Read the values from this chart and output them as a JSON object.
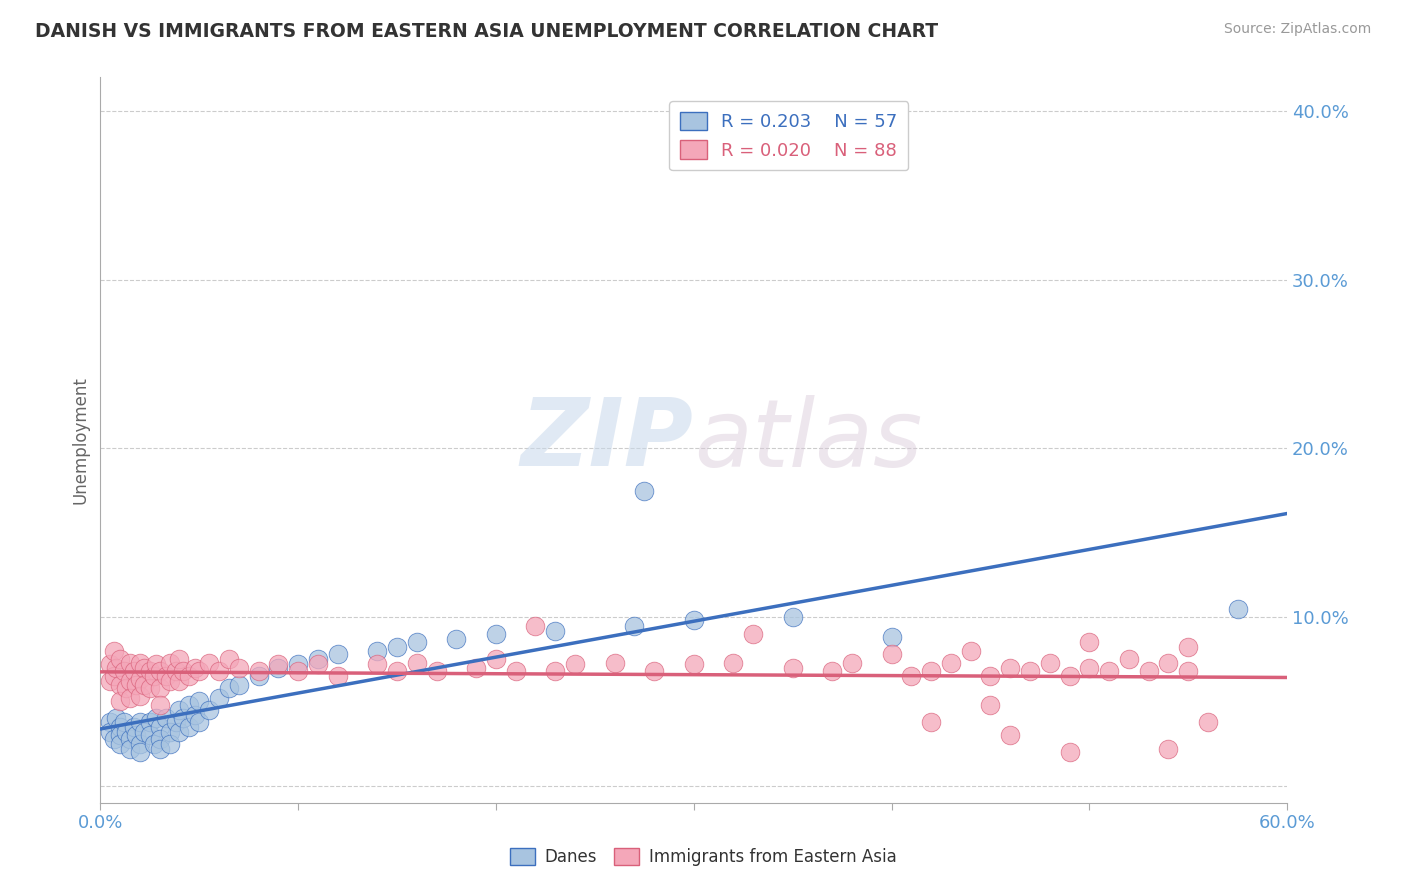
{
  "title": "DANISH VS IMMIGRANTS FROM EASTERN ASIA UNEMPLOYMENT CORRELATION CHART",
  "source": "Source: ZipAtlas.com",
  "ylabel": "Unemployment",
  "legend_blue_label": "Danes",
  "legend_pink_label": "Immigrants from Eastern Asia",
  "R_blue": 0.203,
  "N_blue": 57,
  "R_pink": 0.02,
  "N_pink": 88,
  "xlim": [
    0.0,
    0.6
  ],
  "ylim": [
    -0.01,
    0.42
  ],
  "yticks": [
    0.0,
    0.1,
    0.2,
    0.3,
    0.4
  ],
  "ytick_labels": [
    "",
    "10.0%",
    "20.0%",
    "30.0%",
    "40.0%"
  ],
  "watermark_zip": "ZIP",
  "watermark_atlas": "atlas",
  "blue_color": "#a8c4e0",
  "pink_color": "#f4a7b9",
  "blue_line_color": "#3c6fbe",
  "pink_line_color": "#d9607a",
  "background_color": "#ffffff",
  "grid_color": "#cccccc",
  "blue_scatter": [
    [
      0.005,
      0.038
    ],
    [
      0.005,
      0.032
    ],
    [
      0.007,
      0.028
    ],
    [
      0.008,
      0.04
    ],
    [
      0.01,
      0.035
    ],
    [
      0.01,
      0.03
    ],
    [
      0.01,
      0.025
    ],
    [
      0.012,
      0.038
    ],
    [
      0.013,
      0.032
    ],
    [
      0.015,
      0.028
    ],
    [
      0.015,
      0.022
    ],
    [
      0.017,
      0.035
    ],
    [
      0.018,
      0.03
    ],
    [
      0.02,
      0.038
    ],
    [
      0.02,
      0.025
    ],
    [
      0.02,
      0.02
    ],
    [
      0.022,
      0.032
    ],
    [
      0.025,
      0.038
    ],
    [
      0.025,
      0.03
    ],
    [
      0.027,
      0.025
    ],
    [
      0.028,
      0.04
    ],
    [
      0.03,
      0.035
    ],
    [
      0.03,
      0.028
    ],
    [
      0.03,
      0.022
    ],
    [
      0.033,
      0.04
    ],
    [
      0.035,
      0.032
    ],
    [
      0.035,
      0.025
    ],
    [
      0.038,
      0.038
    ],
    [
      0.04,
      0.045
    ],
    [
      0.04,
      0.032
    ],
    [
      0.042,
      0.04
    ],
    [
      0.045,
      0.048
    ],
    [
      0.045,
      0.035
    ],
    [
      0.048,
      0.042
    ],
    [
      0.05,
      0.05
    ],
    [
      0.05,
      0.038
    ],
    [
      0.055,
      0.045
    ],
    [
      0.06,
      0.052
    ],
    [
      0.065,
      0.058
    ],
    [
      0.07,
      0.06
    ],
    [
      0.08,
      0.065
    ],
    [
      0.09,
      0.07
    ],
    [
      0.1,
      0.072
    ],
    [
      0.11,
      0.075
    ],
    [
      0.12,
      0.078
    ],
    [
      0.14,
      0.08
    ],
    [
      0.15,
      0.082
    ],
    [
      0.16,
      0.085
    ],
    [
      0.18,
      0.087
    ],
    [
      0.2,
      0.09
    ],
    [
      0.23,
      0.092
    ],
    [
      0.27,
      0.095
    ],
    [
      0.3,
      0.098
    ],
    [
      0.35,
      0.1
    ],
    [
      0.4,
      0.088
    ],
    [
      0.275,
      0.175
    ],
    [
      0.575,
      0.105
    ]
  ],
  "pink_scatter": [
    [
      0.005,
      0.072
    ],
    [
      0.005,
      0.062
    ],
    [
      0.007,
      0.08
    ],
    [
      0.007,
      0.065
    ],
    [
      0.008,
      0.07
    ],
    [
      0.01,
      0.075
    ],
    [
      0.01,
      0.06
    ],
    [
      0.01,
      0.05
    ],
    [
      0.012,
      0.068
    ],
    [
      0.013,
      0.058
    ],
    [
      0.015,
      0.073
    ],
    [
      0.015,
      0.062
    ],
    [
      0.015,
      0.052
    ],
    [
      0.017,
      0.068
    ],
    [
      0.018,
      0.06
    ],
    [
      0.02,
      0.073
    ],
    [
      0.02,
      0.063
    ],
    [
      0.02,
      0.053
    ],
    [
      0.022,
      0.07
    ],
    [
      0.022,
      0.06
    ],
    [
      0.025,
      0.068
    ],
    [
      0.025,
      0.058
    ],
    [
      0.027,
      0.065
    ],
    [
      0.028,
      0.072
    ],
    [
      0.03,
      0.068
    ],
    [
      0.03,
      0.058
    ],
    [
      0.03,
      0.048
    ],
    [
      0.033,
      0.065
    ],
    [
      0.035,
      0.073
    ],
    [
      0.035,
      0.062
    ],
    [
      0.038,
      0.068
    ],
    [
      0.04,
      0.075
    ],
    [
      0.04,
      0.062
    ],
    [
      0.042,
      0.068
    ],
    [
      0.045,
      0.065
    ],
    [
      0.048,
      0.07
    ],
    [
      0.05,
      0.068
    ],
    [
      0.055,
      0.073
    ],
    [
      0.06,
      0.068
    ],
    [
      0.065,
      0.075
    ],
    [
      0.07,
      0.07
    ],
    [
      0.08,
      0.068
    ],
    [
      0.09,
      0.072
    ],
    [
      0.1,
      0.068
    ],
    [
      0.11,
      0.072
    ],
    [
      0.12,
      0.065
    ],
    [
      0.14,
      0.072
    ],
    [
      0.15,
      0.068
    ],
    [
      0.16,
      0.073
    ],
    [
      0.17,
      0.068
    ],
    [
      0.19,
      0.07
    ],
    [
      0.2,
      0.075
    ],
    [
      0.21,
      0.068
    ],
    [
      0.22,
      0.095
    ],
    [
      0.23,
      0.068
    ],
    [
      0.24,
      0.072
    ],
    [
      0.26,
      0.073
    ],
    [
      0.28,
      0.068
    ],
    [
      0.3,
      0.072
    ],
    [
      0.32,
      0.073
    ],
    [
      0.33,
      0.09
    ],
    [
      0.35,
      0.07
    ],
    [
      0.37,
      0.068
    ],
    [
      0.38,
      0.073
    ],
    [
      0.4,
      0.078
    ],
    [
      0.41,
      0.065
    ],
    [
      0.42,
      0.068
    ],
    [
      0.43,
      0.073
    ],
    [
      0.44,
      0.08
    ],
    [
      0.45,
      0.065
    ],
    [
      0.46,
      0.07
    ],
    [
      0.47,
      0.068
    ],
    [
      0.48,
      0.073
    ],
    [
      0.49,
      0.065
    ],
    [
      0.5,
      0.07
    ],
    [
      0.51,
      0.068
    ],
    [
      0.52,
      0.075
    ],
    [
      0.53,
      0.068
    ],
    [
      0.54,
      0.073
    ],
    [
      0.55,
      0.068
    ],
    [
      0.45,
      0.048
    ],
    [
      0.42,
      0.038
    ],
    [
      0.46,
      0.03
    ],
    [
      0.49,
      0.02
    ],
    [
      0.54,
      0.022
    ],
    [
      0.56,
      0.038
    ],
    [
      0.5,
      0.085
    ],
    [
      0.55,
      0.082
    ]
  ]
}
